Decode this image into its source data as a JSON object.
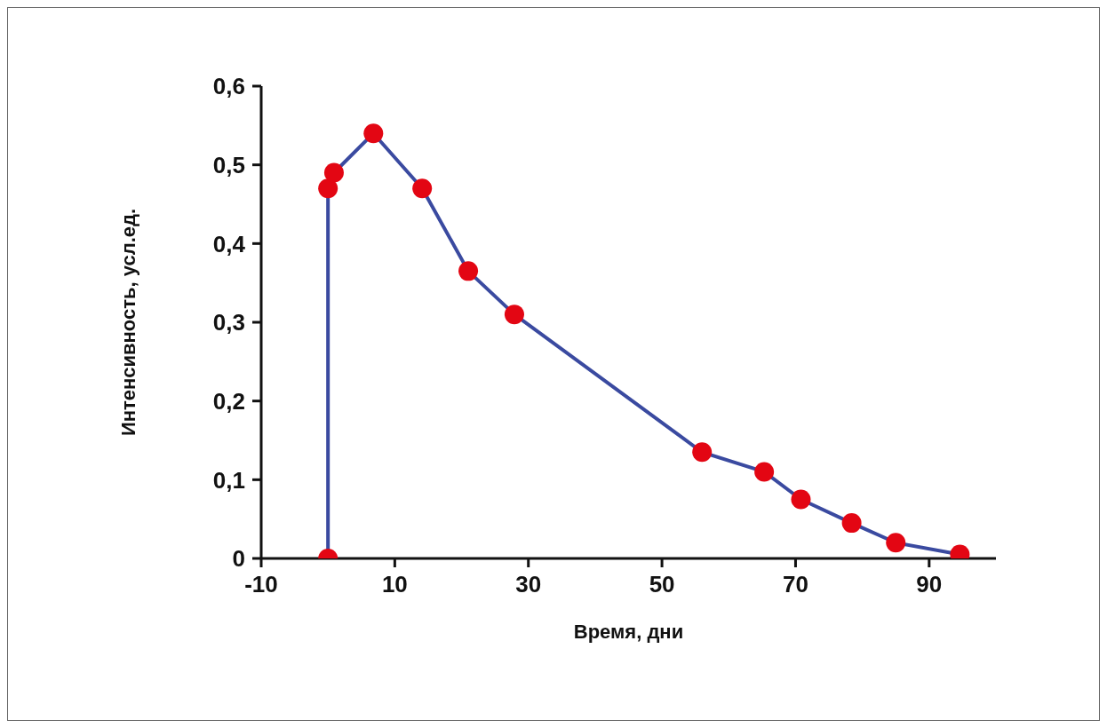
{
  "chart_data": {
    "type": "line",
    "xlabel": "Время, дни",
    "ylabel": "Интенсивность, усл.ед.",
    "x": [
      0,
      0,
      0.9,
      6.8,
      14.1,
      21,
      27.9,
      56,
      65.3,
      70.8,
      78.4,
      85,
      94.6
    ],
    "series": [
      {
        "color": "#3a4aa0",
        "colors": [
          "#e30613",
          "#e30613",
          "#e30613",
          "#e30613",
          "#e30613",
          "#e30613",
          "#e30613",
          "#e30613",
          "#e30613",
          "#e30613",
          "#e30613",
          "#e30613",
          "#e30613"
        ],
        "values": [
          0,
          0.47,
          0.49,
          0.54,
          0.47,
          0.365,
          0.31,
          0.135,
          0.11,
          0.075,
          0.045,
          0.02,
          0.005
        ]
      }
    ],
    "marker": "circle",
    "line_style": "solid",
    "xlim": [
      -10,
      100
    ],
    "xticks": [
      -10,
      10,
      30,
      50,
      70,
      90
    ],
    "ylim": [
      0,
      0.6
    ],
    "yticks": [
      0,
      {
        "value": 0.1,
        "label": "0,1"
      },
      {
        "value": 0.2,
        "label": "0,2"
      },
      {
        "value": 0.3,
        "label": "0,3"
      },
      {
        "value": 0.4,
        "label": "0,4"
      },
      {
        "value": 0.5,
        "label": "0,5"
      },
      {
        "value": 0.6,
        "label": "0,6"
      }
    ]
  }
}
